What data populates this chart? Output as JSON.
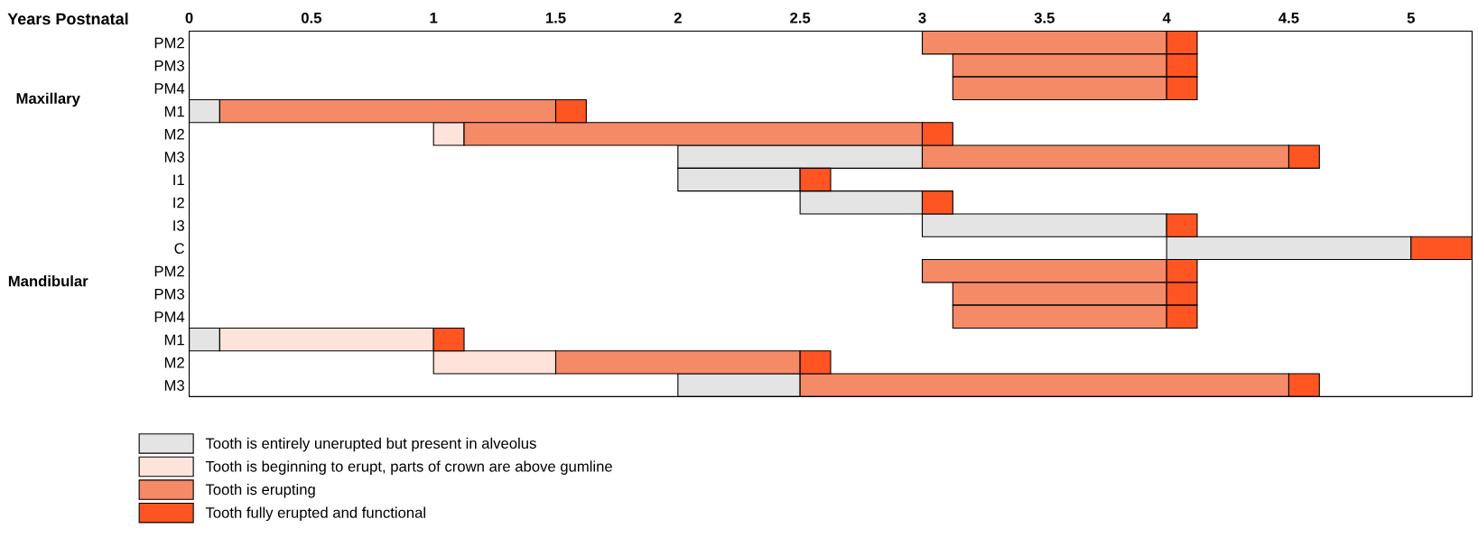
{
  "chart_data": {
    "type": "bar",
    "orientation": "horizontal",
    "xlabel": "Years Postnatal",
    "categories": [
      "PM2",
      "PM3",
      "PM4",
      "M1",
      "M2",
      "M3",
      "I1",
      "I2",
      "I3",
      "C",
      "PM2",
      "PM3",
      "PM4",
      "M1",
      "M2",
      "M3"
    ],
    "series": [
      {
        "name": "Tooth is entirely unerupted but present in alveolus",
        "color": "#e4e4e4",
        "base": [
          null,
          null,
          null,
          0,
          null,
          2,
          2,
          2.5,
          3,
          4,
          null,
          null,
          null,
          0,
          null,
          2
        ],
        "values": [
          null,
          null,
          null,
          0.125,
          null,
          1,
          0.5,
          0.5,
          1,
          1,
          null,
          null,
          null,
          0.125,
          null,
          0.5
        ]
      },
      {
        "name": "Tooth is beginning to erupt, parts of crown are above gumline",
        "color": "#fde3da",
        "base": [
          null,
          null,
          null,
          null,
          1,
          null,
          null,
          null,
          null,
          null,
          null,
          null,
          null,
          0.125,
          1,
          null
        ],
        "values": [
          null,
          null,
          null,
          null,
          0.125,
          null,
          null,
          null,
          null,
          null,
          null,
          null,
          null,
          0.875,
          0.5,
          null
        ]
      },
      {
        "name": "Tooth is erupting",
        "color": "#f58a66",
        "base": [
          3,
          3.125,
          3.125,
          0.125,
          1.125,
          3,
          null,
          null,
          null,
          null,
          3,
          3.125,
          3.125,
          null,
          1.5,
          2.5
        ],
        "values": [
          1,
          0.875,
          0.875,
          1.375,
          1.875,
          1.5,
          null,
          null,
          null,
          null,
          1,
          0.875,
          0.875,
          null,
          1,
          2
        ]
      },
      {
        "name": "Tooth fully erupted and functional",
        "color": "#ff5522",
        "base": [
          4,
          4,
          4,
          1.5,
          3,
          4.5,
          2.5,
          3,
          4,
          5,
          4,
          4,
          4,
          1,
          2.5,
          4.5
        ],
        "values": [
          0.125,
          0.125,
          0.125,
          0.125,
          0.125,
          0.125,
          0.125,
          0.125,
          0.125,
          0.25,
          0.125,
          0.125,
          0.125,
          0.125,
          0.125,
          0.125
        ]
      }
    ],
    "xlim": [
      0,
      5.25
    ],
    "xticks": [
      0,
      0.5,
      1,
      1.5,
      2,
      2.5,
      3,
      3.5,
      4,
      4.5,
      5
    ],
    "annotations": [
      "Maxillary",
      "Mandibular"
    ],
    "legend": "bottom left",
    "grid": false
  }
}
